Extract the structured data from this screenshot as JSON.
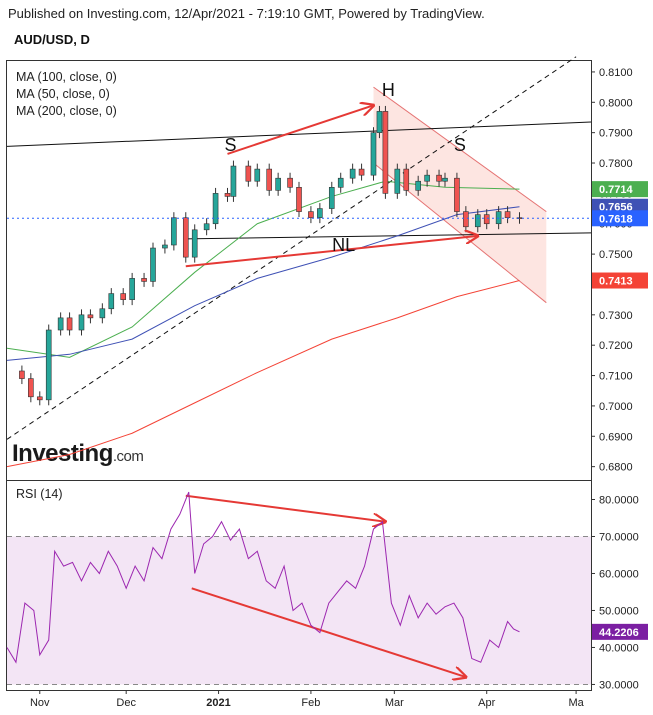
{
  "header": {
    "published": "Published on Investing.com, 12/Apr/2021 - 7:19:10 GMT, Powered by TradingView.",
    "symbol": "AUD/USD, D"
  },
  "legend": {
    "ma100": "MA (100, close, 0)",
    "ma50": "MA (50, close, 0)",
    "ma200": "MA (200, close, 0)",
    "rsi": "RSI (14)"
  },
  "logo": {
    "brand": "Investing",
    "domain": ".com"
  },
  "colors": {
    "ma50": "#4caf50",
    "ma100": "#3f51b5",
    "ma200": "#f44336",
    "rsi": "#9c27b0",
    "rsi_band": "#f3e5f5",
    "channel": "#fde0dc",
    "arrow": "#e53935",
    "up": "#26a69a",
    "down": "#ef5350",
    "last_price_bg": "#2962ff"
  },
  "chart_data": [
    {
      "type": "candlestick",
      "title": "AUD/USD, D",
      "x_ticks": [
        "Nov",
        "Dec",
        "2021",
        "Feb",
        "Mar",
        "Apr",
        "Ma"
      ],
      "x_tick_dates": [
        "2020-11-02",
        "2020-12-01",
        "2021-01-01",
        "2021-02-01",
        "2021-03-01",
        "2021-04-01",
        "2021-05-01"
      ],
      "x_range": [
        "2020-10-22",
        "2021-05-06"
      ],
      "ylim": [
        0.6756,
        0.8136
      ],
      "y_ticks": [
        "0.8100",
        "0.8000",
        "0.7900",
        "0.7800",
        "0.7700",
        "0.7600",
        "0.7500",
        "0.7400",
        "0.7300",
        "0.7200",
        "0.7100",
        "0.7000",
        "0.6900",
        "0.6800"
      ],
      "price_badges": [
        {
          "label": "0.7714",
          "value": 0.7714,
          "color": "#4caf50"
        },
        {
          "label": "0.7656",
          "value": 0.7656,
          "color": "#3f51b5"
        },
        {
          "label": "0.7618",
          "value": 0.7618,
          "color": "#2962ff"
        },
        {
          "label": "0.7413",
          "value": 0.7413,
          "color": "#f44336"
        }
      ],
      "closes": [
        [
          "2020-10-22",
          0.7115
        ],
        [
          "2020-10-27",
          0.709
        ],
        [
          "2020-10-30",
          0.703
        ],
        [
          "2020-11-02",
          0.702
        ],
        [
          "2020-11-05",
          0.725
        ],
        [
          "2020-11-09",
          0.729
        ],
        [
          "2020-11-12",
          0.725
        ],
        [
          "2020-11-16",
          0.73
        ],
        [
          "2020-11-19",
          0.729
        ],
        [
          "2020-11-23",
          0.732
        ],
        [
          "2020-11-26",
          0.737
        ],
        [
          "2020-11-30",
          0.735
        ],
        [
          "2020-12-03",
          0.742
        ],
        [
          "2020-12-07",
          0.741
        ],
        [
          "2020-12-10",
          0.752
        ],
        [
          "2020-12-14",
          0.753
        ],
        [
          "2020-12-17",
          0.762
        ],
        [
          "2020-12-21",
          0.749
        ],
        [
          "2020-12-24",
          0.758
        ],
        [
          "2020-12-28",
          0.76
        ],
        [
          "2020-12-31",
          0.77
        ],
        [
          "2021-01-04",
          0.769
        ],
        [
          "2021-01-06",
          0.779
        ],
        [
          "2021-01-11",
          0.774
        ],
        [
          "2021-01-14",
          0.778
        ],
        [
          "2021-01-18",
          0.771
        ],
        [
          "2021-01-21",
          0.775
        ],
        [
          "2021-01-25",
          0.772
        ],
        [
          "2021-01-28",
          0.764
        ],
        [
          "2021-02-01",
          0.762
        ],
        [
          "2021-02-04",
          0.765
        ],
        [
          "2021-02-08",
          0.772
        ],
        [
          "2021-02-11",
          0.775
        ],
        [
          "2021-02-15",
          0.778
        ],
        [
          "2021-02-18",
          0.776
        ],
        [
          "2021-02-22",
          0.79
        ],
        [
          "2021-02-24",
          0.797
        ],
        [
          "2021-02-26",
          0.77
        ],
        [
          "2021-03-02",
          0.778
        ],
        [
          "2021-03-05",
          0.771
        ],
        [
          "2021-03-09",
          0.774
        ],
        [
          "2021-03-12",
          0.776
        ],
        [
          "2021-03-16",
          0.774
        ],
        [
          "2021-03-18",
          0.775
        ],
        [
          "2021-03-22",
          0.764
        ],
        [
          "2021-03-25",
          0.759
        ],
        [
          "2021-03-29",
          0.763
        ],
        [
          "2021-04-01",
          0.76
        ],
        [
          "2021-04-05",
          0.764
        ],
        [
          "2021-04-08",
          0.762
        ],
        [
          "2021-04-12",
          0.7618
        ]
      ],
      "moving_averages": [
        {
          "name": "MA (50, close, 0)",
          "color": "#4caf50",
          "points": [
            [
              "2020-10-22",
              0.719
            ],
            [
              "2020-11-12",
              0.716
            ],
            [
              "2020-12-03",
              0.726
            ],
            [
              "2020-12-24",
              0.744
            ],
            [
              "2021-01-14",
              0.76
            ],
            [
              "2021-02-08",
              0.769
            ],
            [
              "2021-02-26",
              0.774
            ],
            [
              "2021-03-18",
              0.772
            ],
            [
              "2021-04-12",
              0.7714
            ]
          ]
        },
        {
          "name": "MA (100, close, 0)",
          "color": "#3f51b5",
          "points": [
            [
              "2020-10-22",
              0.715
            ],
            [
              "2020-11-12",
              0.717
            ],
            [
              "2020-12-03",
              0.722
            ],
            [
              "2020-12-24",
              0.733
            ],
            [
              "2021-01-14",
              0.742
            ],
            [
              "2021-02-08",
              0.749
            ],
            [
              "2021-03-02",
              0.756
            ],
            [
              "2021-03-22",
              0.763
            ],
            [
              "2021-04-12",
              0.7656
            ]
          ]
        },
        {
          "name": "MA (200, close, 0)",
          "color": "#f44336",
          "points": [
            [
              "2020-10-22",
              0.68
            ],
            [
              "2020-11-12",
              0.684
            ],
            [
              "2020-12-03",
              0.691
            ],
            [
              "2020-12-24",
              0.701
            ],
            [
              "2021-01-14",
              0.711
            ],
            [
              "2021-02-08",
              0.722
            ],
            [
              "2021-03-02",
              0.729
            ],
            [
              "2021-03-22",
              0.736
            ],
            [
              "2021-04-12",
              0.7413
            ]
          ]
        }
      ],
      "trendlines": [
        {
          "style": "solid",
          "color": "#111111",
          "from": [
            "2020-10-22",
            0.7855
          ],
          "to": [
            "2021-05-06",
            0.7935
          ]
        },
        {
          "style": "solid",
          "color": "#111111",
          "from": [
            "2020-12-21",
            0.755
          ],
          "to": [
            "2021-05-06",
            0.757
          ]
        },
        {
          "style": "dashed",
          "color": "#111111",
          "from": [
            "2020-10-22",
            0.689
          ],
          "to": [
            "2021-05-01",
            0.815
          ]
        }
      ],
      "channel": {
        "color": "#fde0dc",
        "upper": [
          [
            "2021-02-22",
            0.805
          ],
          [
            "2021-04-21",
            0.764
          ]
        ],
        "lower": [
          [
            "2021-02-22",
            0.78
          ],
          [
            "2021-04-21",
            0.734
          ]
        ]
      },
      "arrows": [
        {
          "from": [
            "2021-01-04",
            0.783
          ],
          "to": [
            "2021-02-22",
            0.799
          ]
        },
        {
          "from": [
            "2020-12-21",
            0.746
          ],
          "to": [
            "2021-03-29",
            0.756
          ]
        }
      ],
      "annotations": [
        {
          "text": "S",
          "at": [
            "2021-01-05",
            0.784
          ]
        },
        {
          "text": "H",
          "at": [
            "2021-02-27",
            0.802
          ]
        },
        {
          "text": "S",
          "at": [
            "2021-03-23",
            0.784
          ]
        },
        {
          "text": "NL",
          "at": [
            "2021-02-12",
            0.751
          ]
        }
      ]
    },
    {
      "type": "line",
      "title": "RSI (14)",
      "x_range": [
        "2020-10-22",
        "2021-05-06"
      ],
      "ylim": [
        28.5,
        85
      ],
      "y_ticks": [
        "80.0000",
        "70.0000",
        "60.0000",
        "50.0000",
        "40.0000",
        "30.0000"
      ],
      "band": [
        30,
        70
      ],
      "last_value_label": "44.2206",
      "last_value": 44.2206,
      "series": [
        {
          "color": "#9c27b0",
          "points": [
            [
              "2020-10-22",
              40
            ],
            [
              "2020-10-25",
              36
            ],
            [
              "2020-10-28",
              52
            ],
            [
              "2020-10-31",
              50
            ],
            [
              "2020-11-02",
              38
            ],
            [
              "2020-11-05",
              42
            ],
            [
              "2020-11-07",
              66
            ],
            [
              "2020-11-10",
              62
            ],
            [
              "2020-11-13",
              63
            ],
            [
              "2020-11-16",
              58
            ],
            [
              "2020-11-19",
              63
            ],
            [
              "2020-11-22",
              60
            ],
            [
              "2020-11-25",
              66
            ],
            [
              "2020-11-28",
              62
            ],
            [
              "2020-12-01",
              56
            ],
            [
              "2020-12-04",
              62
            ],
            [
              "2020-12-07",
              58
            ],
            [
              "2020-12-10",
              67
            ],
            [
              "2020-12-13",
              64
            ],
            [
              "2020-12-16",
              72
            ],
            [
              "2020-12-19",
              76
            ],
            [
              "2020-12-22",
              82
            ],
            [
              "2020-12-24",
              60
            ],
            [
              "2020-12-27",
              68
            ],
            [
              "2020-12-30",
              70
            ],
            [
              "2021-01-02",
              74
            ],
            [
              "2021-01-05",
              69
            ],
            [
              "2021-01-08",
              72
            ],
            [
              "2021-01-11",
              64
            ],
            [
              "2021-01-14",
              66
            ],
            [
              "2021-01-17",
              58
            ],
            [
              "2021-01-20",
              56
            ],
            [
              "2021-01-23",
              62
            ],
            [
              "2021-01-26",
              50
            ],
            [
              "2021-01-29",
              52
            ],
            [
              "2021-02-01",
              46
            ],
            [
              "2021-02-04",
              44
            ],
            [
              "2021-02-07",
              52
            ],
            [
              "2021-02-10",
              55
            ],
            [
              "2021-02-13",
              58
            ],
            [
              "2021-02-16",
              56
            ],
            [
              "2021-02-19",
              62
            ],
            [
              "2021-02-22",
              72
            ],
            [
              "2021-02-25",
              74
            ],
            [
              "2021-02-28",
              52
            ],
            [
              "2021-03-03",
              46
            ],
            [
              "2021-03-06",
              54
            ],
            [
              "2021-03-09",
              48
            ],
            [
              "2021-03-12",
              52
            ],
            [
              "2021-03-15",
              49
            ],
            [
              "2021-03-18",
              51
            ],
            [
              "2021-03-21",
              52
            ],
            [
              "2021-03-24",
              48
            ],
            [
              "2021-03-27",
              37
            ],
            [
              "2021-03-30",
              36
            ],
            [
              "2021-04-02",
              42
            ],
            [
              "2021-04-05",
              40
            ],
            [
              "2021-04-08",
              47
            ],
            [
              "2021-04-10",
              45
            ],
            [
              "2021-04-12",
              44.22
            ]
          ]
        }
      ],
      "arrows": [
        {
          "from": [
            "2020-12-21",
            81
          ],
          "to": [
            "2021-02-26",
            74
          ]
        },
        {
          "from": [
            "2020-12-23",
            56
          ],
          "to": [
            "2021-03-25",
            32
          ]
        }
      ]
    }
  ]
}
